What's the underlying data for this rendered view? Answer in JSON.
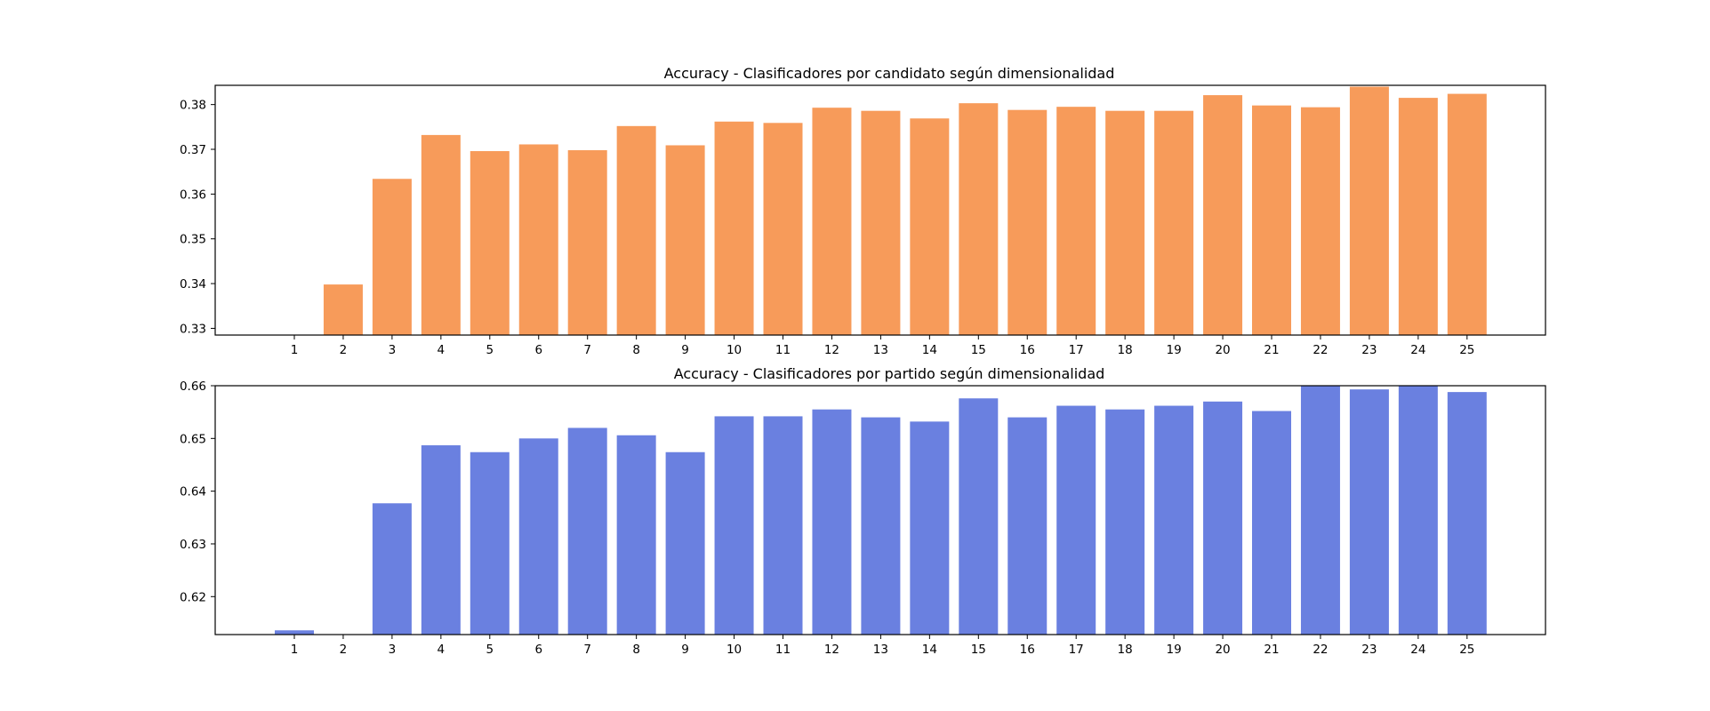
{
  "chart_data": [
    {
      "type": "bar",
      "title": "Accuracy - Clasificadores por candidato según dimensionalidad",
      "xlabel": "",
      "ylabel": "",
      "color": "#f79b5a",
      "categories": [
        "1",
        "2",
        "3",
        "4",
        "5",
        "6",
        "7",
        "8",
        "9",
        "10",
        "11",
        "12",
        "13",
        "14",
        "15",
        "16",
        "17",
        "18",
        "19",
        "20",
        "21",
        "22",
        "23",
        "24",
        "25"
      ],
      "values": [
        0.325,
        0.3398,
        0.3634,
        0.3732,
        0.3696,
        0.3711,
        0.3698,
        0.3752,
        0.3709,
        0.3762,
        0.3759,
        0.3793,
        0.3786,
        0.3769,
        0.3803,
        0.3788,
        0.3795,
        0.3786,
        0.3786,
        0.3821,
        0.3798,
        0.3794,
        0.384,
        0.3815,
        0.3824
      ],
      "ylim": [
        0.3285,
        0.3843
      ],
      "yticks": [
        "0.33",
        "0.34",
        "0.35",
        "0.36",
        "0.37",
        "0.38"
      ],
      "ytick_values": [
        0.33,
        0.34,
        0.35,
        0.36,
        0.37,
        0.38
      ],
      "grid": false
    },
    {
      "type": "bar",
      "title": "Accuracy - Clasificadores por partido según dimensionalidad",
      "xlabel": "",
      "ylabel": "",
      "color": "#6a80e0",
      "categories": [
        "1",
        "2",
        "3",
        "4",
        "5",
        "6",
        "7",
        "8",
        "9",
        "10",
        "11",
        "12",
        "13",
        "14",
        "15",
        "16",
        "17",
        "18",
        "19",
        "20",
        "21",
        "22",
        "23",
        "24",
        "25"
      ],
      "values": [
        0.6136,
        0.612,
        0.6377,
        0.6487,
        0.6474,
        0.65,
        0.652,
        0.6506,
        0.6474,
        0.6542,
        0.6542,
        0.6555,
        0.654,
        0.6532,
        0.6576,
        0.654,
        0.6562,
        0.6555,
        0.6562,
        0.657,
        0.6552,
        0.66,
        0.6593,
        0.66,
        0.6588
      ],
      "ylim": [
        0.6128,
        0.66
      ],
      "yticks": [
        "0.62",
        "0.63",
        "0.64",
        "0.65",
        "0.66"
      ],
      "ytick_values": [
        0.62,
        0.63,
        0.64,
        0.65,
        0.66
      ],
      "grid": false
    }
  ]
}
